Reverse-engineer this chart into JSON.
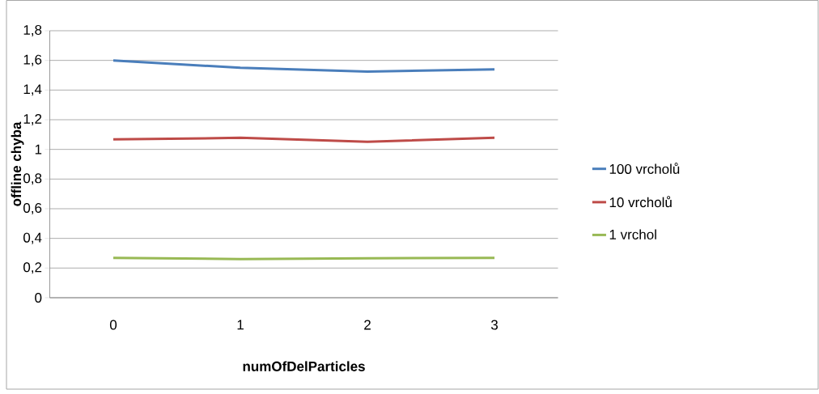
{
  "chart_data": {
    "type": "line",
    "xlabel": "numOfDelParticles",
    "ylabel": "offline chyba",
    "categories": [
      "0",
      "1",
      "2",
      "3"
    ],
    "series": [
      {
        "name": "100 vrcholů",
        "color": "#4a7ebb",
        "values": [
          1.6,
          1.55,
          1.525,
          1.54
        ]
      },
      {
        "name": "10 vrcholů",
        "color": "#be4b48",
        "values": [
          1.067,
          1.078,
          1.051,
          1.078
        ]
      },
      {
        "name": "1 vrchol",
        "color": "#98b954",
        "values": [
          0.268,
          0.261,
          0.266,
          0.268
        ]
      }
    ],
    "ylim": [
      0,
      1.8
    ],
    "yticks": [
      0,
      {
        "value": 0.2,
        "label": "0,2"
      },
      {
        "value": 0.4,
        "label": "0,4"
      },
      {
        "value": 0.6,
        "label": "0,6"
      },
      {
        "value": 0.8,
        "label": "0,8"
      },
      1,
      {
        "value": 1.2,
        "label": "1,2"
      },
      {
        "value": 1.4,
        "label": "1,4"
      },
      {
        "value": 1.6,
        "label": "1,6"
      },
      {
        "value": 1.8,
        "label": "1,8"
      }
    ],
    "grid": "y",
    "legend": "right",
    "marker": "none",
    "line_style": "solid"
  }
}
